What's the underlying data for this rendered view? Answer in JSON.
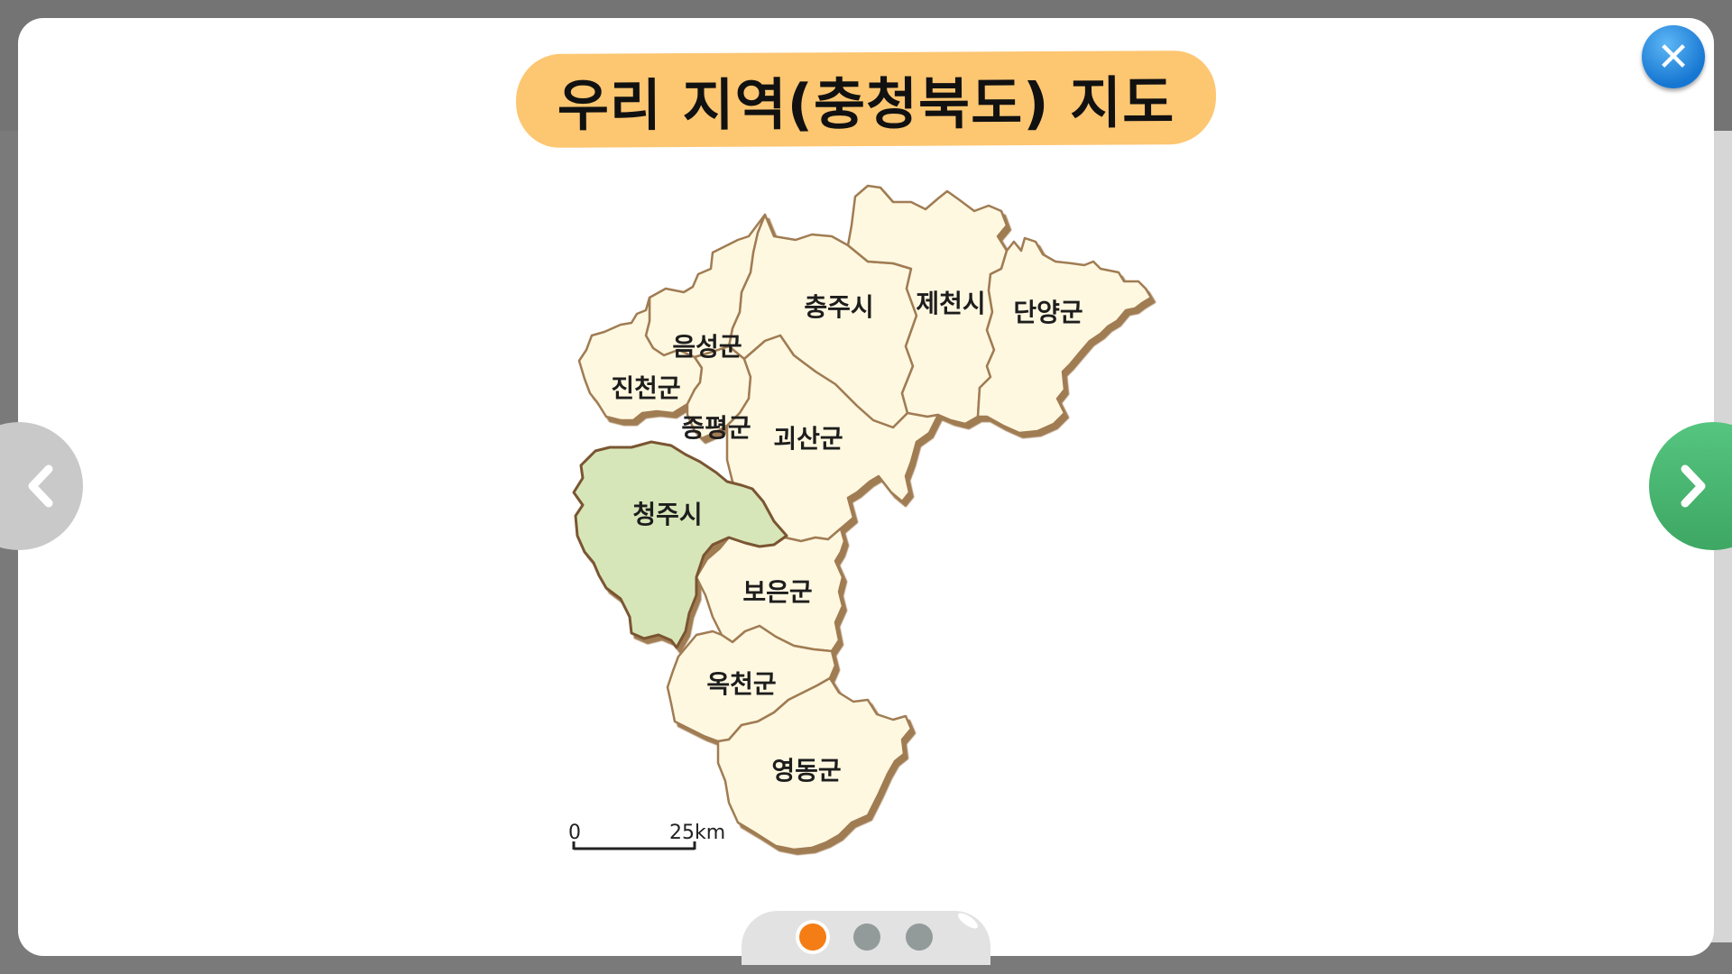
{
  "title": "우리 지역(충청북도) 지도",
  "close_icon": "close-icon",
  "prev_icon": "chevron-left-icon",
  "next_icon": "chevron-right-icon",
  "regions": [
    {
      "name": "충주시"
    },
    {
      "name": "제천시"
    },
    {
      "name": "단양군"
    },
    {
      "name": "음성군"
    },
    {
      "name": "진천군"
    },
    {
      "name": "증평군"
    },
    {
      "name": "괴산군"
    },
    {
      "name": "청주시",
      "selected": true
    },
    {
      "name": "보은군"
    },
    {
      "name": "옥천군"
    },
    {
      "name": "영동군"
    }
  ],
  "scale": {
    "start": "0",
    "end": "25km"
  },
  "pager": {
    "count": 3,
    "active_index": 0
  },
  "colors": {
    "title_pill": "#fdc671",
    "region_fill": "#fff8e1",
    "region_border": "#a07b52",
    "selected_fill": "#d7e6b9",
    "next_button": "#4bb673",
    "prev_button": "#c9c9c9",
    "close_button": "#1f82dc",
    "active_dot": "#f47d15",
    "inactive_dot": "#929b9a"
  }
}
